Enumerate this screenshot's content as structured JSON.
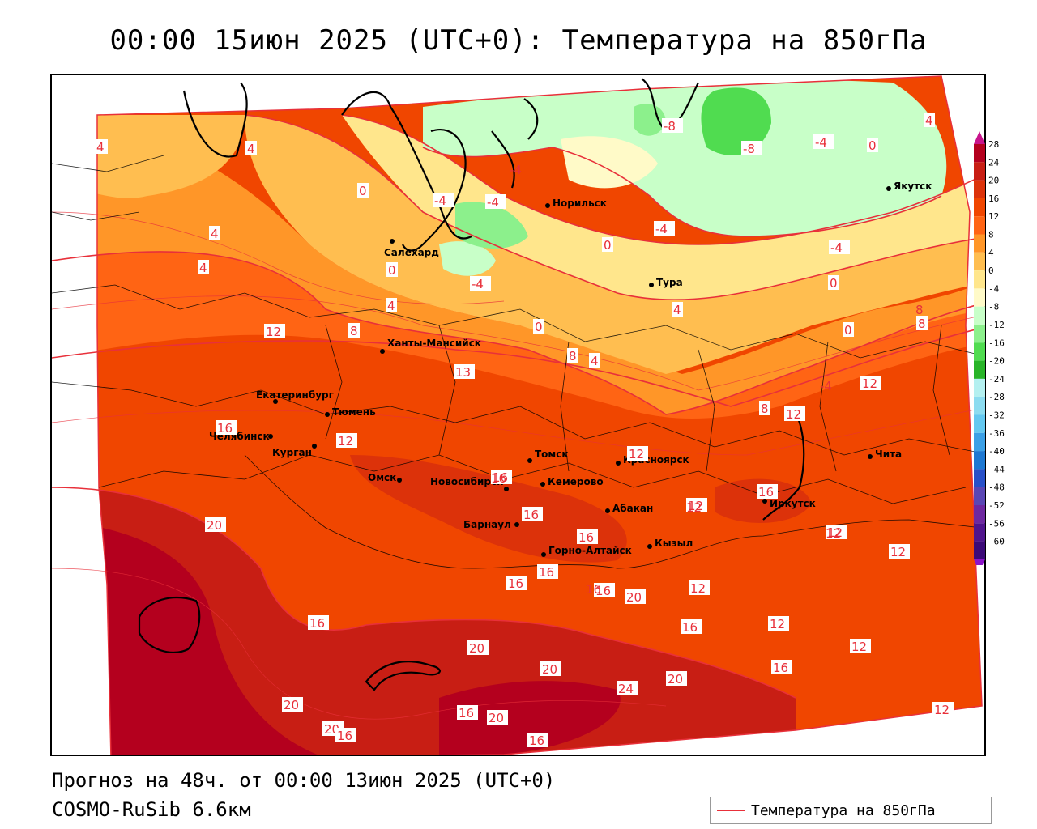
{
  "header": {
    "title": "00:00 15июн 2025 (UTC+0): Температура на 850гПа"
  },
  "footer": {
    "forecast": "Прогноз на 48ч. от 00:00 13июн 2025 (UTC+0)",
    "model": "COSMO-RuSib 6.6км"
  },
  "legend": {
    "label": "Температура на 850гПа",
    "line_color": "#e8303a"
  },
  "colorbar": {
    "ticks": [
      "28",
      "24",
      "20",
      "16",
      "12",
      "8",
      "4",
      "0",
      "-4",
      "-8",
      "-12",
      "-16",
      "-20",
      "-24",
      "-28",
      "-32",
      "-36",
      "-40",
      "-44",
      "-48",
      "-52",
      "-56",
      "-60"
    ],
    "colors": [
      "#b4001e",
      "#c81e14",
      "#dc320a",
      "#f04600",
      "#ff6414",
      "#ff9628",
      "#ffbe50",
      "#ffe68c",
      "#fffac8",
      "#c8ffc8",
      "#8cf08c",
      "#50dc50",
      "#28b428",
      "#b4f0f0",
      "#8cdcf0",
      "#64c8f0",
      "#3ca0e6",
      "#1e78d2",
      "#2850c8",
      "#5a46b4",
      "#6e28a0",
      "#50148c",
      "#3c0a78"
    ]
  },
  "cities": [
    "Норильск",
    "Якутск",
    "Салехард",
    "Тура",
    "Ханты-Мансийск",
    "Екатеринбург",
    "Тюмень",
    "Челябинск",
    "Курган",
    "Омск",
    "Томск",
    "Красноярск",
    "Новосибирск",
    "Кемерово",
    "Абакан",
    "Барнаул",
    "Горно-Алтайск",
    "Кызыл",
    "Иркутск",
    "Чита"
  ],
  "contour_labels": [
    "4",
    "4",
    "-8",
    "-4",
    "0",
    "4",
    "-8",
    "-4",
    "-4",
    "4",
    "0",
    "-4",
    "4",
    "0",
    "0",
    "-4",
    "-4",
    "-4",
    "0",
    "0",
    "4",
    "4",
    "8",
    "12",
    "8",
    "8",
    "4",
    "-4",
    "0",
    "8",
    "12",
    "8",
    "13",
    "16",
    "12",
    "12",
    "16",
    "12",
    "16",
    "16",
    "16",
    "16",
    "20",
    "12",
    "12",
    "16",
    "16",
    "16",
    "12",
    "20",
    "16",
    "20",
    "16",
    "20",
    "12",
    "20",
    "20",
    "24",
    "16",
    "20",
    "20",
    "16",
    "16",
    "16",
    "12",
    "12",
    "12",
    "12",
    "12",
    "16"
  ]
}
